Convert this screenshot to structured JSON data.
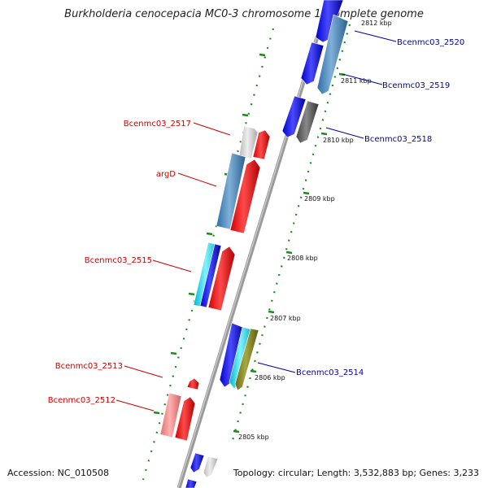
{
  "title": "Burkholderia cenocepacia MC0-3 chromosome 1, complete genome",
  "footer": {
    "accession": "Accession: NC_010508",
    "topology": "Topology: circular; Length: 3,532,883 bp; Genes: 3,233"
  },
  "colors": {
    "backbone": "#8a8a8a",
    "tick_green": "#1f8a1f",
    "forward_label": "#cc0000",
    "reverse_label": "#0000aa"
  },
  "ticks": [
    {
      "label": "2812 kbp",
      "kbp": 2812
    },
    {
      "label": "2811 kbp",
      "kbp": 2811
    },
    {
      "label": "2810 kbp",
      "kbp": 2810
    },
    {
      "label": "2809 kbp",
      "kbp": 2809
    },
    {
      "label": "2808 kbp",
      "kbp": 2808
    },
    {
      "label": "2807 kbp",
      "kbp": 2807
    },
    {
      "label": "2806 kbp",
      "kbp": 2806
    },
    {
      "label": "2805 kbp",
      "kbp": 2805
    }
  ],
  "gene_labels": [
    {
      "name": "Bcenmc03_2520",
      "strand": "reverse"
    },
    {
      "name": "Bcenmc03_2519",
      "strand": "reverse"
    },
    {
      "name": "Bcenmc03_2518",
      "strand": "reverse"
    },
    {
      "name": "Bcenmc03_2517",
      "strand": "forward"
    },
    {
      "name": "argD",
      "strand": "forward"
    },
    {
      "name": "Bcenmc03_2515",
      "strand": "forward"
    },
    {
      "name": "Bcenmc03_2514",
      "strand": "reverse"
    },
    {
      "name": "Bcenmc03_2513",
      "strand": "forward"
    },
    {
      "name": "Bcenmc03_2512",
      "strand": "forward"
    }
  ]
}
